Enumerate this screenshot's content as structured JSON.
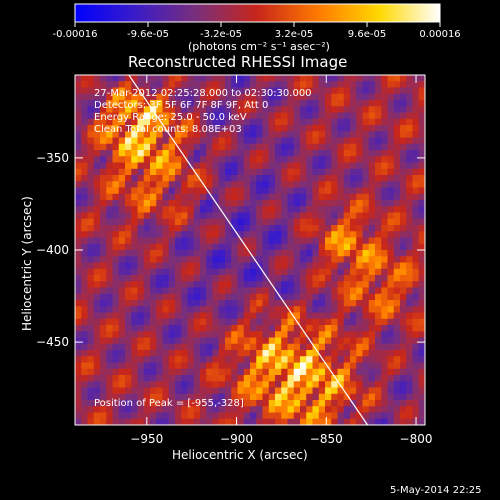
{
  "colorbar": {
    "ticks": [
      "-0.00016",
      "-9.6e-05",
      "-3.2e-05",
      "3.2e-05",
      "9.6e-05",
      "0.00016"
    ],
    "unit_label": "(photons cm⁻² s⁻¹ asec⁻²)",
    "colors": [
      "#0000ff",
      "#3b1cc8",
      "#7a2f7a",
      "#c8261a",
      "#ff7a00",
      "#ffd800",
      "#ffffff"
    ]
  },
  "chart_data": {
    "type": "heatmap",
    "title": "Reconstructed RHESSI Image",
    "xlabel": "Heliocentric X (arcsec)",
    "ylabel": "Heliocentric Y (arcsec)",
    "xlim": [
      -990,
      -795
    ],
    "ylim": [
      -495,
      -305
    ],
    "x_ticks": [
      -950,
      -900,
      -850,
      -800
    ],
    "y_ticks": [
      -350,
      -400,
      -450
    ],
    "x_tick_labels": [
      "−950",
      "−900",
      "−850",
      "−800"
    ],
    "y_tick_labels": [
      "−350",
      "−400",
      "−450"
    ],
    "limb_line": [
      [
        -960,
        -305
      ],
      [
        -827,
        -495
      ]
    ],
    "grid": false,
    "annotations": [
      "27-Mar-2012 02:25:28.000 to 02:30:30.000",
      "Detectors: 3F 5F 6F 7F 8F 9F, Att 0",
      "Energy Range: 25.0 - 50.0 keV",
      "Clean      Total counts: 8.08E+03"
    ],
    "peak_label": "Position of Peak = [-955,-328]"
  },
  "footer": {
    "timestamp": "5-May-2014 22:25"
  }
}
